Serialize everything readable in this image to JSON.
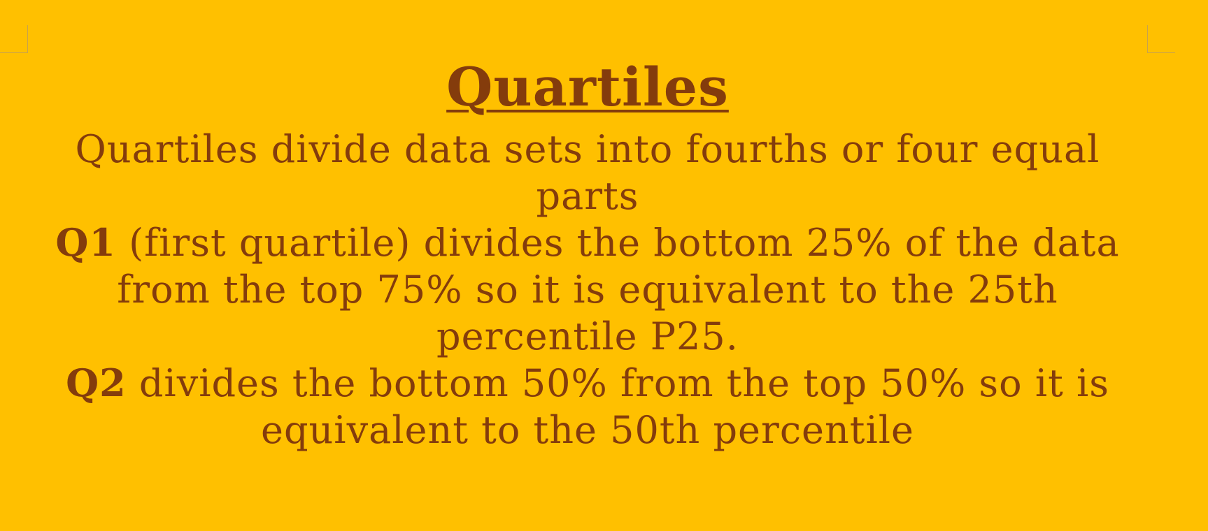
{
  "slide": {
    "title": "Quartiles",
    "intro": "Quartiles divide data sets into fourths or four equal parts",
    "q1": {
      "term": "Q1",
      "text": " (first quartile) divides the bottom 25% of the data from the top 75% so it is equivalent to the 25th percentile P25."
    },
    "q2": {
      "term": "Q2",
      "text": " divides the bottom 50% from the top 50% so it is equivalent to the 50th percentile"
    }
  },
  "colors": {
    "background": "#FFC000",
    "text": "#843C0C"
  }
}
